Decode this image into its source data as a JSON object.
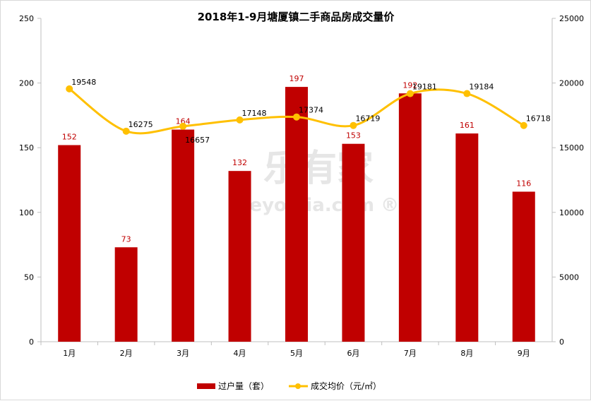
{
  "chart_data": {
    "type": "bar+line",
    "title": "2018年1-9月塘厦镇二手商品房成交量价",
    "categories": [
      "1月",
      "2月",
      "3月",
      "4月",
      "5月",
      "6月",
      "7月",
      "8月",
      "9月"
    ],
    "series": [
      {
        "name": "过户量（套）",
        "type": "bar",
        "axis": "left",
        "color": "#c00000",
        "values": [
          152,
          73,
          164,
          132,
          197,
          153,
          192,
          161,
          116
        ]
      },
      {
        "name": "成交均价（元/㎡）",
        "type": "line",
        "axis": "right",
        "color": "#ffc000",
        "values": [
          19548,
          16275,
          16657,
          17148,
          17374,
          16719,
          19181,
          19184,
          16718
        ]
      }
    ],
    "y_left": {
      "range": [
        0,
        250
      ],
      "ticks": [
        0,
        50,
        100,
        150,
        200,
        250
      ]
    },
    "y_right": {
      "range": [
        0,
        25000
      ],
      "ticks": [
        0,
        5000,
        10000,
        15000,
        20000,
        25000
      ]
    },
    "grid": false,
    "legend": "bottom",
    "watermark": "乐有家 Leyoujia.com"
  }
}
